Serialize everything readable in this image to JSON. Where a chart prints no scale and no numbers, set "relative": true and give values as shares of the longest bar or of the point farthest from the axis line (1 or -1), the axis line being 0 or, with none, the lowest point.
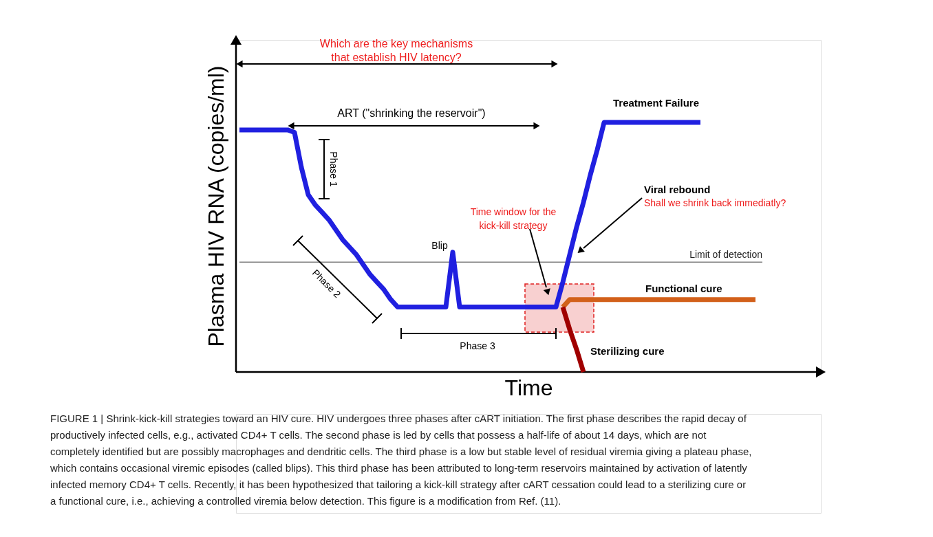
{
  "chart_data": {
    "type": "line",
    "relative": true,
    "xlabel": "Time",
    "ylabel": "Plasma HIV RNA (copies/ml)",
    "categories": [
      null,
      null,
      null,
      null,
      null,
      null,
      null,
      null,
      null,
      null,
      null,
      null,
      null,
      null,
      null,
      null,
      null,
      null,
      null,
      null,
      null,
      null,
      null,
      null,
      null,
      null,
      null,
      null,
      null,
      null,
      null,
      null,
      null,
      null,
      null,
      null,
      null,
      null,
      null,
      null,
      null,
      null,
      null,
      null,
      null,
      null,
      null,
      null,
      null,
      null,
      null,
      null,
      null,
      null,
      null,
      null,
      null,
      null,
      null,
      null,
      null,
      null,
      null,
      null,
      null,
      null,
      null,
      null,
      null,
      null,
      null,
      null,
      null,
      null,
      null,
      null,
      null
    ],
    "series": [
      {
        "name": "Treatment Failure",
        "color": "#2020e0",
        "values": [
          0.97,
          0.97,
          0.97,
          0.97,
          0.97,
          0.97,
          0.97,
          0.97,
          0.96,
          0.82,
          0.71,
          0.67,
          0.64,
          0.61,
          0.57,
          0.53,
          0.5,
          0.47,
          0.43,
          0.39,
          0.36,
          0.33,
          0.29,
          0.26,
          0.26,
          0.26,
          0.26,
          0.26,
          0.26,
          0.26,
          0.26,
          0.48,
          0.26,
          0.26,
          0.26,
          0.26,
          0.26,
          0.26,
          0.26,
          0.26,
          0.26,
          0.26,
          0.26,
          0.26,
          0.26,
          0.26,
          0.26,
          0.36,
          0.47,
          0.58,
          0.68,
          0.79,
          0.89,
          1.0,
          1.0,
          1.0,
          1.0,
          1.0,
          1.0,
          1.0,
          1.0,
          1.0,
          1.0,
          1.0,
          1.0,
          1.0,
          1.0,
          1.0,
          null,
          null,
          null,
          null,
          null,
          null,
          null,
          null,
          null
        ]
      },
      {
        "name": "Functional cure",
        "color": "#d2601a",
        "values": [
          null,
          null,
          null,
          null,
          null,
          null,
          null,
          null,
          null,
          null,
          null,
          null,
          null,
          null,
          null,
          null,
          null,
          null,
          null,
          null,
          null,
          null,
          null,
          null,
          null,
          null,
          null,
          null,
          null,
          null,
          null,
          null,
          null,
          null,
          null,
          null,
          null,
          null,
          null,
          null,
          null,
          null,
          null,
          null,
          null,
          null,
          null,
          0.26,
          0.29,
          0.29,
          0.29,
          0.29,
          0.29,
          0.29,
          0.29,
          0.29,
          0.29,
          0.29,
          0.29,
          0.29,
          0.29,
          0.29,
          0.29,
          0.29,
          0.29,
          0.29,
          0.29,
          0.29,
          0.29,
          0.29,
          0.29,
          0.29,
          0.29,
          0.29,
          0.29,
          0.29,
          null
        ]
      },
      {
        "name": "Sterilizing cure",
        "color": "#a00000",
        "values": [
          null,
          null,
          null,
          null,
          null,
          null,
          null,
          null,
          null,
          null,
          null,
          null,
          null,
          null,
          null,
          null,
          null,
          null,
          null,
          null,
          null,
          null,
          null,
          null,
          null,
          null,
          null,
          null,
          null,
          null,
          null,
          null,
          null,
          null,
          null,
          null,
          null,
          null,
          null,
          null,
          null,
          null,
          null,
          null,
          null,
          null,
          null,
          0.26,
          0.17,
          0.09,
          0.0,
          null,
          null,
          null,
          null,
          null,
          null,
          null,
          null,
          null,
          null,
          null,
          null,
          null,
          null,
          null,
          null,
          null,
          null,
          null,
          null,
          null,
          null,
          null,
          null,
          null,
          null
        ]
      }
    ],
    "ref_lines": [
      {
        "axis": "y",
        "value": 0.44,
        "label": "Limit of detection",
        "color": "#808080"
      }
    ],
    "annotations": [
      "Which are the key mechanisms that establish HIV latency?",
      "ART   (\"shrinking the reservoir\")",
      "Phase 1",
      "Phase 2",
      "Phase 3",
      "Blip",
      "Time window for the kick-kill strategy",
      "Viral  rebound",
      "Shall we shrink back immediatly?",
      "FIGURE 1 | Shrink-kick-kill strategies toward an HIV cure. HIV undergoes three phases after cART initiation. The first phase describes the rapid decay of productively infected cells, e.g., activated CD4+ T cells. The second phase is led by cells that possess a half-life of about 14 days, which are not completely identified but are possibly macrophages and dendritic cells. The third phase is a low but stable level of residual viremia giving a plateau phase, which contains occasional viremic episodes (called blips). This third phase has been attributed to long-term reservoirs maintained by activation of latently infected memory CD4+ T cells. Recently, it has been hypothesized that tailoring a kick-kill strategy after cART cessation could lead to a sterilizing cure or a functional cure, i.e., achieving a controlled viremia below detection. This figure is a modification from Ref. (11)."
    ]
  }
}
